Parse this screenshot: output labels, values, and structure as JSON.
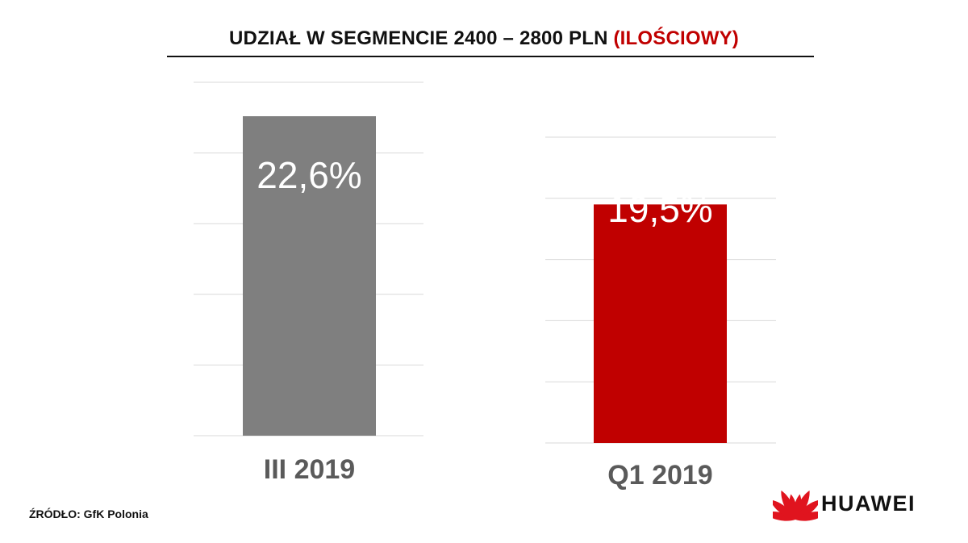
{
  "title": {
    "main": "UDZIAŁ W SEGMENCIE 2400 – 2800 PLN ",
    "accent": "(ILOŚCIOWY)"
  },
  "source": "ŹRÓDŁO: GfK Polonia",
  "logo": {
    "text": "HUAWEI",
    "icon": "huawei-petals-icon",
    "color": "#e0141e"
  },
  "colors": {
    "grey_bar": "#7f7f7f",
    "red_bar": "#c00000",
    "accent": "#c00000",
    "grid": "#d9d9d9"
  },
  "chart_data": [
    {
      "type": "bar",
      "categories": [
        "III 2019"
      ],
      "values": [
        22.6
      ],
      "labels": [
        "22,6%"
      ],
      "unit": "%",
      "ylim": [
        0,
        25
      ],
      "grid": true,
      "color": "#7f7f7f"
    },
    {
      "type": "bar",
      "categories": [
        "Q1 2019"
      ],
      "values": [
        19.5
      ],
      "labels": [
        "19,5%"
      ],
      "unit": "%",
      "ylim": [
        0,
        25
      ],
      "grid": true,
      "color": "#c00000"
    }
  ]
}
